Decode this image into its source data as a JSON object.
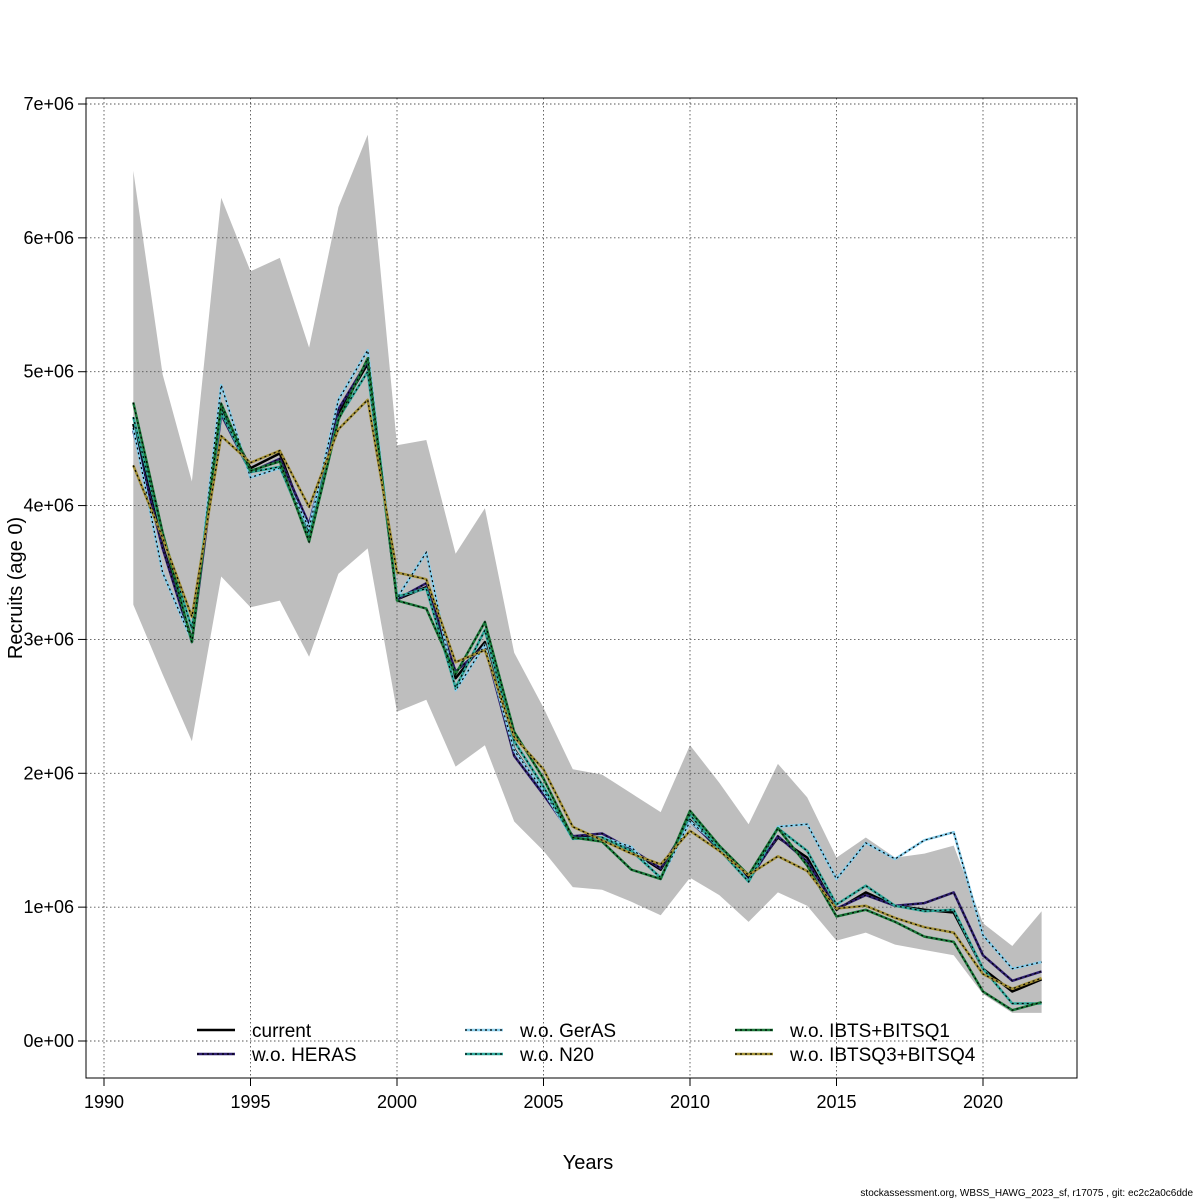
{
  "chart_data": {
    "type": "line",
    "xlabel": "Years",
    "ylabel": "Recruits (age 0)",
    "xlim": [
      1990,
      2023
    ],
    "ylim": [
      0,
      7000000
    ],
    "grid": true,
    "legend_position": "bottom",
    "x_ticks": [
      1990,
      1995,
      2000,
      2005,
      2010,
      2015,
      2020
    ],
    "y_ticks": [
      0,
      1000000,
      2000000,
      3000000,
      4000000,
      5000000,
      6000000,
      7000000
    ],
    "y_tick_labels": [
      "0e+00",
      "1e+06",
      "2e+06",
      "3e+06",
      "4e+06",
      "5e+06",
      "6e+06",
      "7e+06"
    ],
    "years": [
      1991,
      1992,
      1993,
      1994,
      1995,
      1996,
      1997,
      1998,
      1999,
      2000,
      2001,
      2002,
      2003,
      2004,
      2005,
      2006,
      2007,
      2008,
      2009,
      2010,
      2011,
      2012,
      2013,
      2014,
      2015,
      2016,
      2017,
      2018,
      2019,
      2020,
      2021,
      2022
    ],
    "confidence_band": {
      "color": "#bebebe",
      "upper": [
        6500000,
        4980000,
        4180000,
        6300000,
        5750000,
        5850000,
        5180000,
        6230000,
        6770000,
        4450000,
        4490000,
        3640000,
        3980000,
        2900000,
        2490000,
        2030000,
        1990000,
        1850000,
        1710000,
        2210000,
        1930000,
        1620000,
        2070000,
        1820000,
        1370000,
        1520000,
        1370000,
        1400000,
        1460000,
        880000,
        710000,
        970000
      ],
      "lower": [
        3260000,
        2740000,
        2240000,
        3470000,
        3240000,
        3290000,
        2870000,
        3490000,
        3680000,
        2460000,
        2550000,
        2050000,
        2210000,
        1640000,
        1420000,
        1150000,
        1130000,
        1040000,
        940000,
        1220000,
        1090000,
        890000,
        1110000,
        1010000,
        750000,
        810000,
        720000,
        680000,
        640000,
        350000,
        210000,
        210000
      ]
    },
    "series": [
      {
        "name": "current",
        "color": "#000000",
        "dash": false,
        "width": 2.5,
        "values": [
          4610000,
          3700000,
          3000000,
          4720000,
          4280000,
          4390000,
          3810000,
          4690000,
          5060000,
          3300000,
          3390000,
          2710000,
          2980000,
          2180000,
          1860000,
          1530000,
          1520000,
          1420000,
          1280000,
          1650000,
          1430000,
          1220000,
          1520000,
          1370000,
          980000,
          1110000,
          1010000,
          980000,
          960000,
          540000,
          370000,
          460000
        ]
      },
      {
        "name": "w.o. HERAS",
        "color": "#2e1e6e",
        "dash": true,
        "width": 2.5,
        "values": [
          4560000,
          3680000,
          2980000,
          4680000,
          4250000,
          4350000,
          3860000,
          4720000,
          5080000,
          3300000,
          3420000,
          2760000,
          2950000,
          2130000,
          1840000,
          1530000,
          1550000,
          1430000,
          1290000,
          1640000,
          1440000,
          1200000,
          1530000,
          1340000,
          990000,
          1090000,
          1010000,
          1030000,
          1110000,
          640000,
          450000,
          520000
        ]
      },
      {
        "name": "w.o. GerAS",
        "color": "#87ceeb",
        "dash": true,
        "width": 2.5,
        "values": [
          4580000,
          3500000,
          2990000,
          4900000,
          4210000,
          4280000,
          3830000,
          4790000,
          5160000,
          3310000,
          3650000,
          2620000,
          2960000,
          2170000,
          1870000,
          1510000,
          1520000,
          1450000,
          1210000,
          1640000,
          1460000,
          1190000,
          1600000,
          1620000,
          1210000,
          1480000,
          1360000,
          1500000,
          1560000,
          790000,
          540000,
          590000
        ]
      },
      {
        "name": "w.o. N20",
        "color": "#2ea89a",
        "dash": true,
        "width": 2.5,
        "values": [
          4660000,
          3790000,
          3080000,
          4700000,
          4250000,
          4290000,
          3770000,
          4650000,
          5000000,
          3320000,
          3380000,
          2640000,
          3070000,
          2240000,
          1900000,
          1510000,
          1520000,
          1420000,
          1220000,
          1690000,
          1430000,
          1190000,
          1590000,
          1420000,
          1020000,
          1160000,
          1010000,
          970000,
          980000,
          540000,
          280000,
          280000
        ]
      },
      {
        "name": "w.o. IBTS+BITSQ1",
        "color": "#1a7a3a",
        "dash": true,
        "width": 2.5,
        "values": [
          4770000,
          3800000,
          2980000,
          4760000,
          4260000,
          4330000,
          3730000,
          4640000,
          5100000,
          3290000,
          3230000,
          2740000,
          3130000,
          2310000,
          1960000,
          1520000,
          1490000,
          1280000,
          1210000,
          1720000,
          1460000,
          1240000,
          1590000,
          1310000,
          930000,
          980000,
          890000,
          780000,
          740000,
          370000,
          230000,
          290000
        ]
      },
      {
        "name": "w.o. IBTSQ3+BITSQ4",
        "color": "#a39035",
        "dash": true,
        "width": 2.5,
        "values": [
          4300000,
          3760000,
          3170000,
          4520000,
          4320000,
          4410000,
          3990000,
          4570000,
          4790000,
          3500000,
          3450000,
          2830000,
          2920000,
          2270000,
          2030000,
          1600000,
          1500000,
          1400000,
          1320000,
          1570000,
          1420000,
          1240000,
          1380000,
          1270000,
          990000,
          1010000,
          920000,
          850000,
          810000,
          500000,
          390000,
          470000
        ]
      }
    ]
  },
  "footer": "stockassessment.org, WBSS_HAWG_2023_sf, r17075 , git: ec2c2a0c6dde"
}
